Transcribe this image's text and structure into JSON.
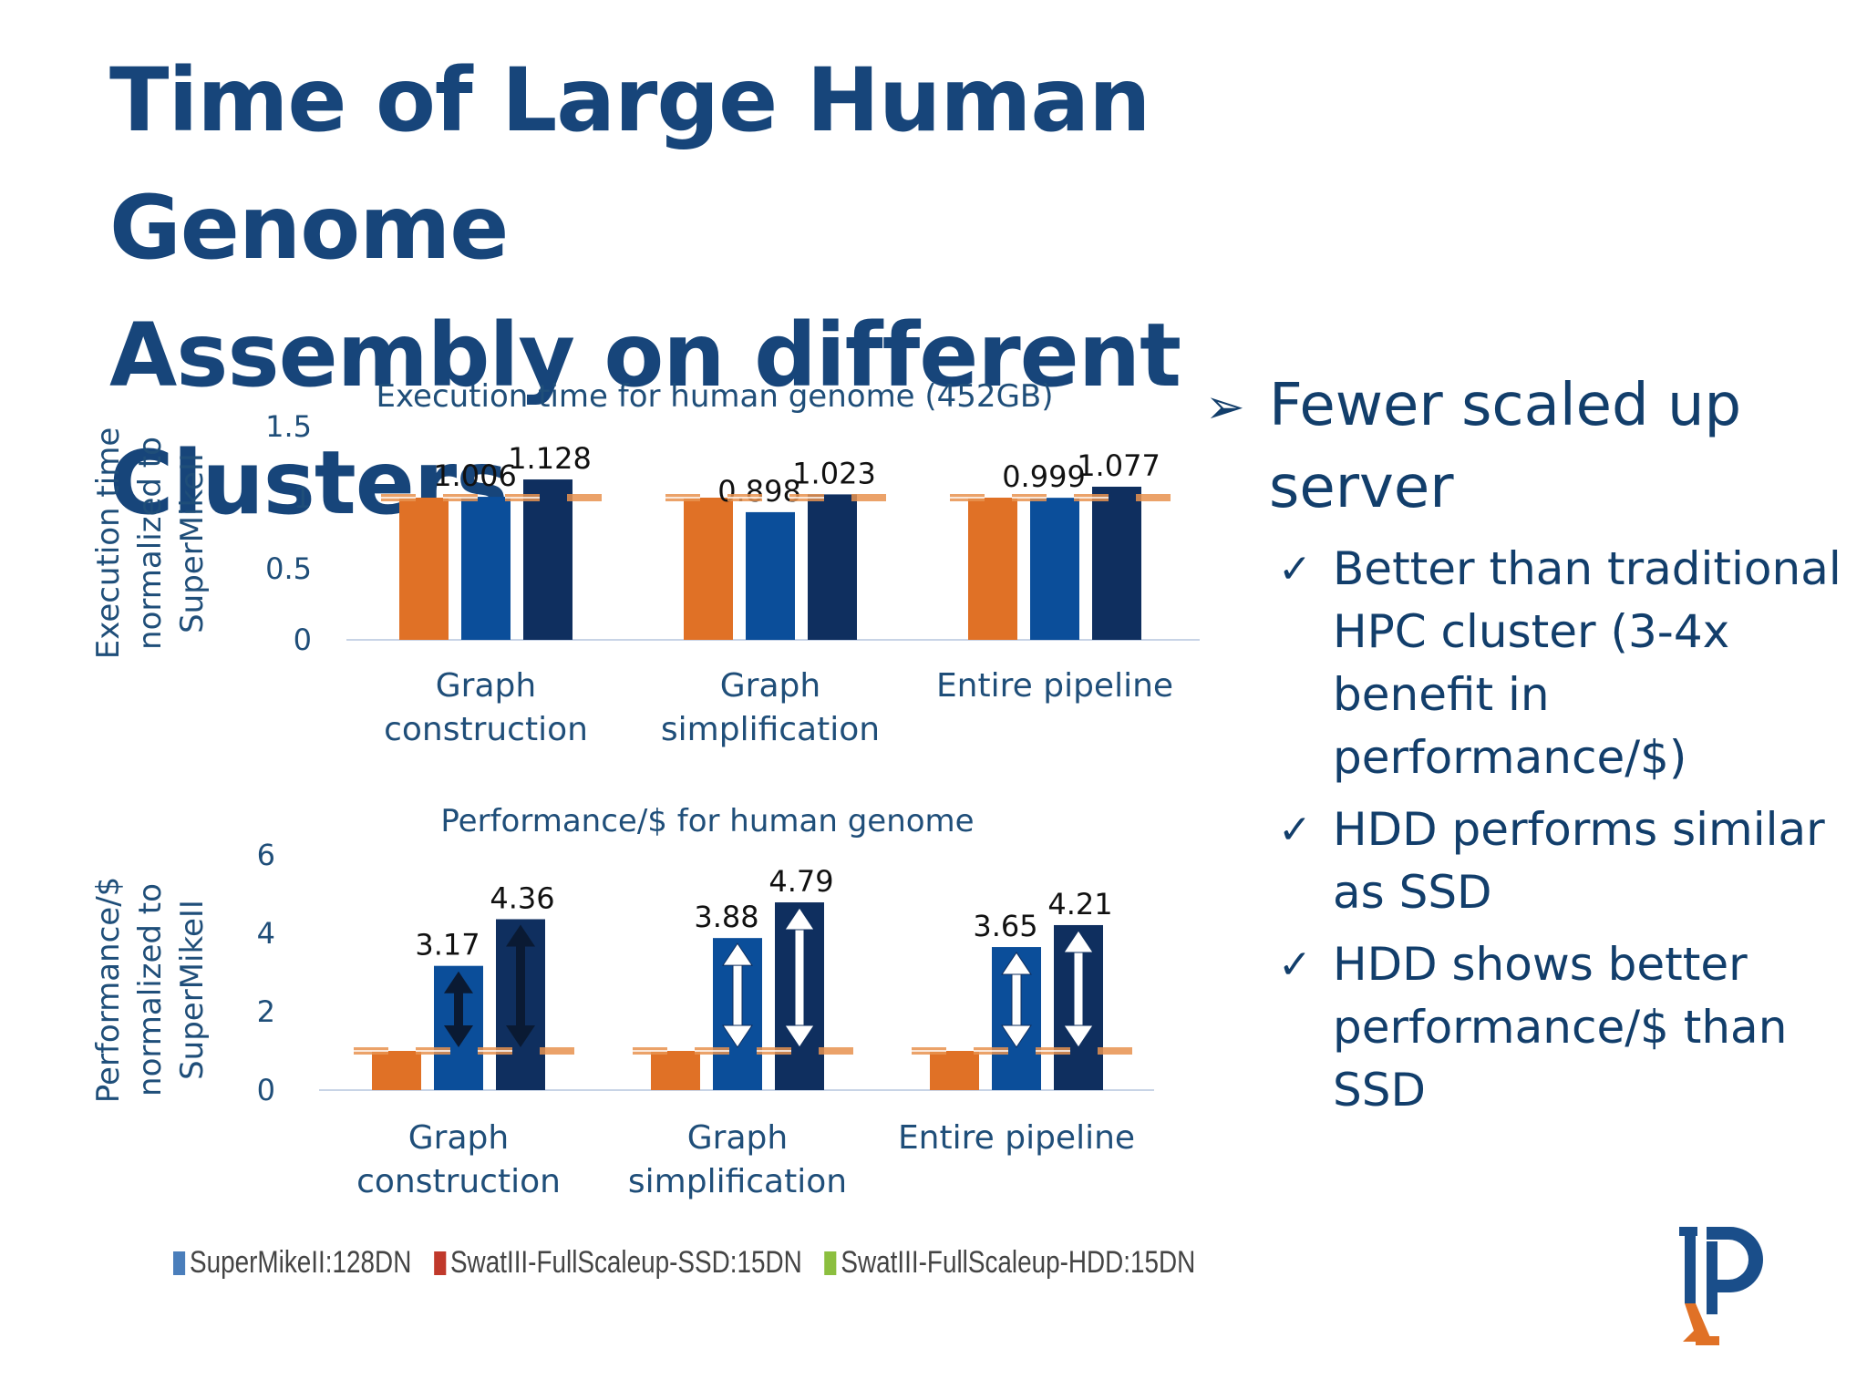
{
  "title": {
    "line1": "Time of Large Human Genome",
    "line2": "Assembly on different Clusters"
  },
  "colors": {
    "title": "#17457a",
    "text": "#1f4e79",
    "orange": "#e07126",
    "blue": "#0b4e9a",
    "navy": "#0f2f5f",
    "legend_blue": "#4a7ebb",
    "legend_red": "#c0392b",
    "legend_green": "#8cbf3f"
  },
  "chart_data": [
    {
      "type": "bar",
      "title": "Execution time for human genome (452GB)",
      "ylabel": [
        "Execution time",
        "normalized to",
        "SuperMikeII"
      ],
      "categories": [
        [
          "Graph",
          "construction"
        ],
        [
          "Graph",
          "simplification"
        ],
        [
          "Entire pipeline"
        ]
      ],
      "yticks": [
        "1.5",
        "1",
        "0.5",
        "0"
      ],
      "ylim": [
        0,
        1.5
      ],
      "series": [
        {
          "values": [
            1.0,
            1.0,
            1.0
          ]
        },
        {
          "values": [
            1.006,
            0.898,
            0.999
          ],
          "labels": [
            "1.006",
            "0.898",
            "0.999"
          ]
        },
        {
          "values": [
            1.128,
            1.023,
            1.077
          ],
          "labels": [
            "1.128",
            "1.023",
            "1.077"
          ]
        }
      ],
      "reference_line": 1.0
    },
    {
      "type": "bar",
      "title": "Performance/$ for human genome",
      "ylabel": [
        "Performance/$",
        "normalized to",
        "SuperMikeII"
      ],
      "categories": [
        [
          "Graph",
          "construction"
        ],
        [
          "Graph",
          "simplification"
        ],
        [
          "Entire pipeline"
        ]
      ],
      "yticks": [
        "6",
        "4",
        "2",
        "0"
      ],
      "ylim": [
        0,
        6
      ],
      "series": [
        {
          "values": [
            1.0,
            1.0,
            1.0
          ]
        },
        {
          "values": [
            3.17,
            3.88,
            3.65
          ],
          "labels": [
            "3.17",
            "3.88",
            "3.65"
          ]
        },
        {
          "values": [
            4.36,
            4.79,
            4.21
          ],
          "labels": [
            "4.36",
            "4.79",
            "4.21"
          ]
        }
      ],
      "reference_line": 1.0
    }
  ],
  "legend": [
    {
      "label": "SuperMikeII:128DN",
      "color": "#4a7ebb"
    },
    {
      "label": "SwatIII-FullScaleup-SSD:15DN",
      "color": "#c0392b"
    },
    {
      "label": "SwatIII-FullScaleup-HDD:15DN",
      "color": "#8cbf3f"
    }
  ],
  "bullets": {
    "main": {
      "marker": "➢",
      "lines": [
        "Fewer scaled up",
        "server"
      ]
    },
    "subs": [
      {
        "marker": "✓",
        "lines": [
          "Better than traditional",
          "HPC cluster (3-4x",
          "benefit in",
          "performance/$)"
        ]
      },
      {
        "marker": "✓",
        "lines": [
          "HDD performs similar",
          "as SSD"
        ]
      },
      {
        "marker": "✓",
        "lines": [
          "HDD shows better",
          "performance/$ than",
          "SSD"
        ]
      }
    ]
  },
  "logo": {
    "icon": "university-p-logo"
  }
}
